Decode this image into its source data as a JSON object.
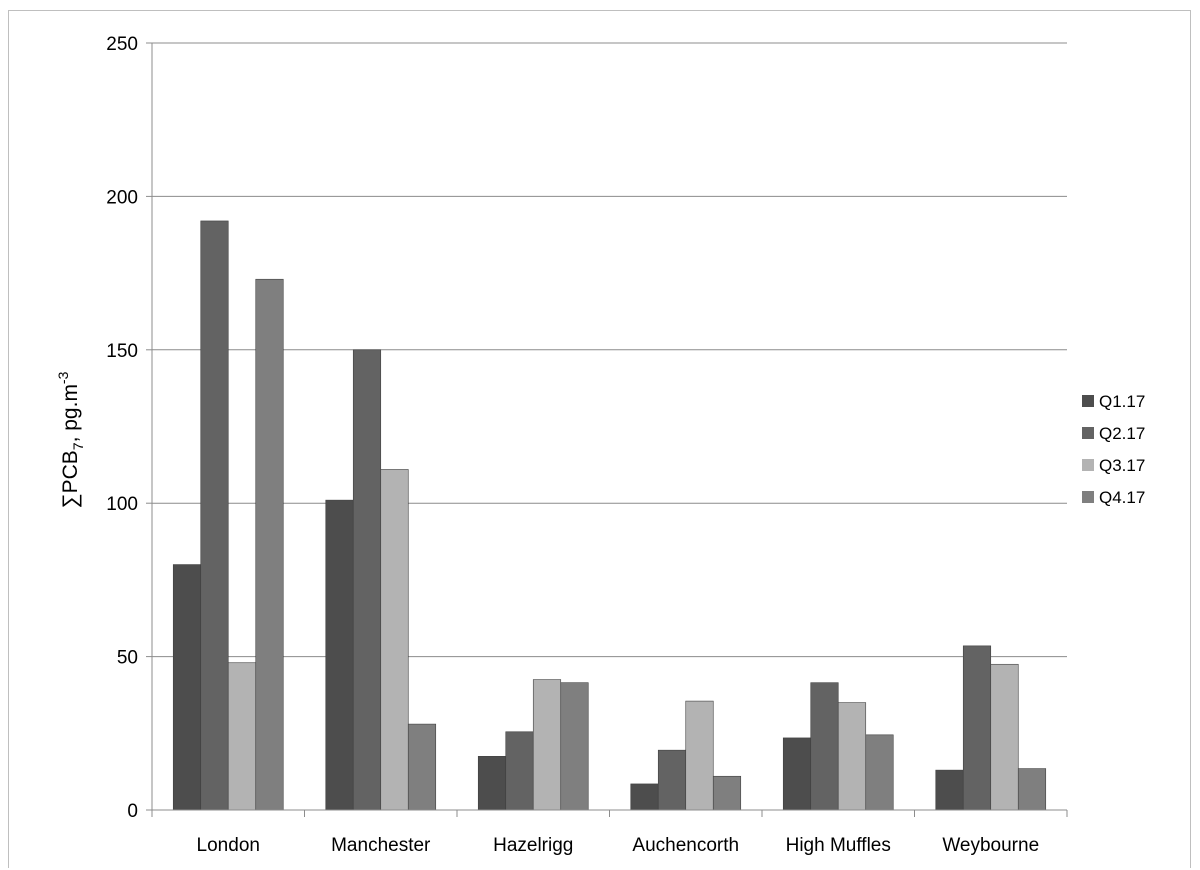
{
  "chart_data": {
    "type": "bar",
    "ylabel": {
      "prefix": "∑PCB",
      "subscript": "7",
      "suffix": ", pg.m",
      "superscript": "-3"
    },
    "ylim": [
      0,
      250
    ],
    "yticks": [
      0,
      50,
      100,
      150,
      200,
      250
    ],
    "grid": true,
    "legend_position": "right",
    "categories": [
      "London",
      "Manchester",
      "Hazelrigg",
      "Auchencorth",
      "High Muffles",
      "Weybourne"
    ],
    "series": [
      {
        "name": "Q1.17",
        "color": "#4d4d4d",
        "values": [
          80,
          101,
          17.5,
          8.5,
          23.5,
          13
        ]
      },
      {
        "name": "Q2.17",
        "color": "#636363",
        "values": [
          192,
          150,
          25.5,
          19.5,
          41.5,
          53.5
        ]
      },
      {
        "name": "Q3.17",
        "color": "#b3b3b3",
        "values": [
          48,
          111,
          42.5,
          35.5,
          35,
          47.5
        ]
      },
      {
        "name": "Q4.17",
        "color": "#7f7f7f",
        "values": [
          173,
          28,
          41.5,
          11,
          24.5,
          13.5
        ]
      }
    ]
  }
}
